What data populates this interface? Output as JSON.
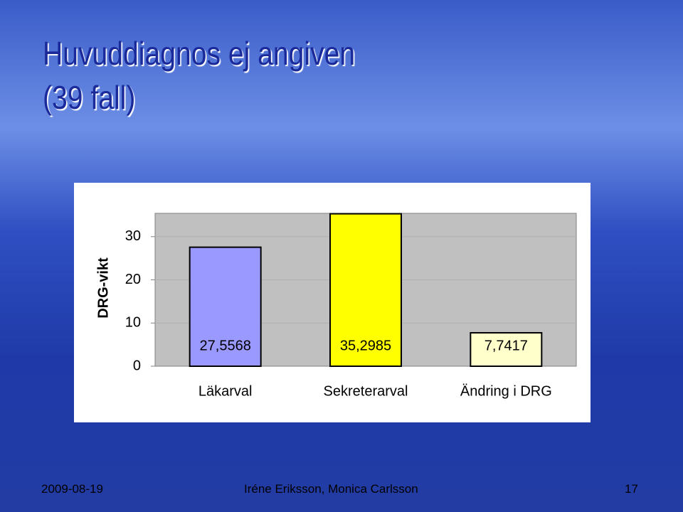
{
  "slide": {
    "title": [
      "Huvuddiagnos ej angiven",
      "(39 fall)"
    ],
    "footer": {
      "date": "2009-08-19",
      "authors": "Iréne Eriksson, Monica Carlsson",
      "page": 17
    }
  },
  "chart_data": {
    "type": "bar",
    "y_label": "DRG-vikt",
    "categories": [
      "Läkarval",
      "Sekreterarval",
      "Ändring i DRG"
    ],
    "values": [
      27.5568,
      35.2985,
      7.7417
    ],
    "value_labels": [
      "27,5568",
      "35,2985",
      "7,7417"
    ],
    "colors": [
      "#9999ff",
      "#ffff00",
      "#ffffcc"
    ],
    "ylim": [
      0,
      35.4
    ],
    "yticks": [
      0,
      10,
      20,
      30
    ],
    "grid": true
  }
}
